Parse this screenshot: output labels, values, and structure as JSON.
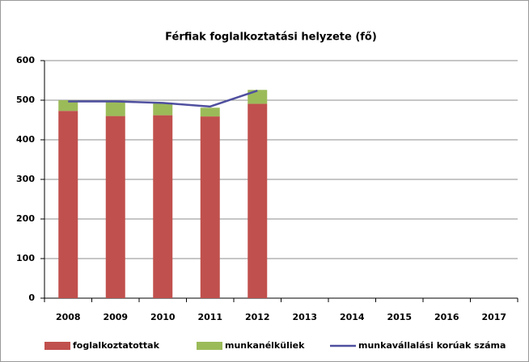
{
  "chart_data": {
    "type": "stacked-bar-line",
    "title": "Férfiak foglalkoztatási helyzete (fő)",
    "categories": [
      "2008",
      "2009",
      "2010",
      "2011",
      "2012",
      "2013",
      "2014",
      "2015",
      "2016",
      "2017"
    ],
    "series": [
      {
        "name": "foglalkoztatottak",
        "color": "#c0504d",
        "kind": "bar",
        "values": [
          473,
          460,
          462,
          459,
          491,
          null,
          null,
          null,
          null,
          null
        ]
      },
      {
        "name": "munkanélküliek",
        "color": "#9bbb59",
        "kind": "bar",
        "values": [
          27,
          35,
          32,
          22,
          35,
          null,
          null,
          null,
          null,
          null
        ]
      },
      {
        "name": "munkavállalási korúak száma",
        "color": "#4f4f9f",
        "kind": "line",
        "values": [
          497,
          497,
          493,
          484,
          524,
          null,
          null,
          null,
          null,
          null
        ]
      }
    ],
    "ylim": [
      0,
      600
    ],
    "yticks": [
      0,
      100,
      200,
      300,
      400,
      500,
      600
    ],
    "grid": true,
    "legend": "bottom"
  }
}
